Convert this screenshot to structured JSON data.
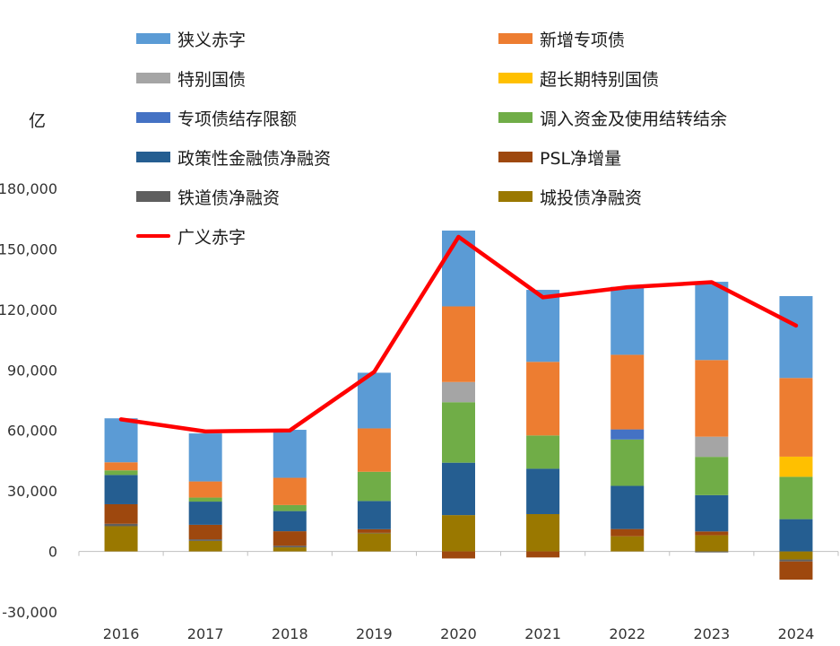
{
  "unit_label": "亿",
  "chart_data": {
    "type": "bar",
    "stacked": true,
    "categories": [
      "2016",
      "2017",
      "2018",
      "2019",
      "2020",
      "2021",
      "2022",
      "2023",
      "2024"
    ],
    "ylim": [
      -30000,
      180000
    ],
    "yticks": [
      -30000,
      0,
      30000,
      60000,
      90000,
      120000,
      150000,
      180000
    ],
    "ytick_labels": [
      "-30,000",
      "0",
      "30,000",
      "60,000",
      "90,000",
      "120,000",
      "150,000",
      "180,000"
    ],
    "legend_position": "top",
    "series": [
      {
        "name": "城投债净融资",
        "color": "#9A7800",
        "values": [
          12500,
          5200,
          2000,
          9000,
          18000,
          18500,
          7500,
          8000,
          -4000
        ]
      },
      {
        "name": "铁道债净融资",
        "color": "#5F5F5F",
        "values": [
          1200,
          800,
          800,
          200,
          0,
          0,
          0,
          -500,
          -1000
        ]
      },
      {
        "name": "PSL净增量",
        "color": "#9E480E",
        "values": [
          9700,
          7200,
          7200,
          1800,
          -3500,
          -3000,
          3600,
          1900,
          -9000
        ]
      },
      {
        "name": "政策性金融债净融资",
        "color": "#255E91",
        "values": [
          14500,
          11500,
          10000,
          14000,
          26000,
          22500,
          21400,
          18000,
          16000
        ]
      },
      {
        "name": "调入资金及使用结转结余",
        "color": "#70AD47",
        "values": [
          2300,
          2000,
          3000,
          14500,
          30000,
          16500,
          23000,
          19000,
          21000
        ]
      },
      {
        "name": "专项债结存限额",
        "color": "#4472C4",
        "values": [
          0,
          0,
          0,
          0,
          0,
          0,
          5000,
          0,
          0
        ]
      },
      {
        "name": "超长期特别国债",
        "color": "#FFC000",
        "values": [
          0,
          0,
          0,
          0,
          0,
          0,
          0,
          0,
          10000
        ]
      },
      {
        "name": "特别国债",
        "color": "#A5A5A5",
        "values": [
          0,
          0,
          0,
          0,
          10000,
          0,
          0,
          10000,
          0
        ]
      },
      {
        "name": "新增专项债",
        "color": "#ED7D31",
        "values": [
          4000,
          8000,
          13500,
          21500,
          37500,
          36500,
          37000,
          38000,
          39000
        ]
      },
      {
        "name": "狭义赤字",
        "color": "#5B9BD5",
        "values": [
          21800,
          23800,
          23800,
          27600,
          37600,
          35700,
          33700,
          38800,
          40600
        ]
      }
    ],
    "line": {
      "name": "广义赤字",
      "color": "#FF0000",
      "values": [
        65500,
        59500,
        60000,
        89000,
        156000,
        126000,
        131000,
        133500,
        112000
      ]
    },
    "legend": [
      {
        "name": "狭义赤字",
        "color": "#5B9BD5",
        "type": "bar"
      },
      {
        "name": "新增专项债",
        "color": "#ED7D31",
        "type": "bar"
      },
      {
        "name": "特别国债",
        "color": "#A5A5A5",
        "type": "bar"
      },
      {
        "name": "超长期特别国债",
        "color": "#FFC000",
        "type": "bar"
      },
      {
        "name": "专项债结存限额",
        "color": "#4472C4",
        "type": "bar"
      },
      {
        "name": "调入资金及使用结转结余",
        "color": "#70AD47",
        "type": "bar"
      },
      {
        "name": "政策性金融债净融资",
        "color": "#255E91",
        "type": "bar"
      },
      {
        "name": "PSL净增量",
        "color": "#9E480E",
        "type": "bar"
      },
      {
        "name": "铁道债净融资",
        "color": "#5F5F5F",
        "type": "bar"
      },
      {
        "name": "城投债净融资",
        "color": "#9A7800",
        "type": "bar"
      },
      {
        "name": "广义赤字",
        "color": "#FF0000",
        "type": "line"
      }
    ]
  }
}
